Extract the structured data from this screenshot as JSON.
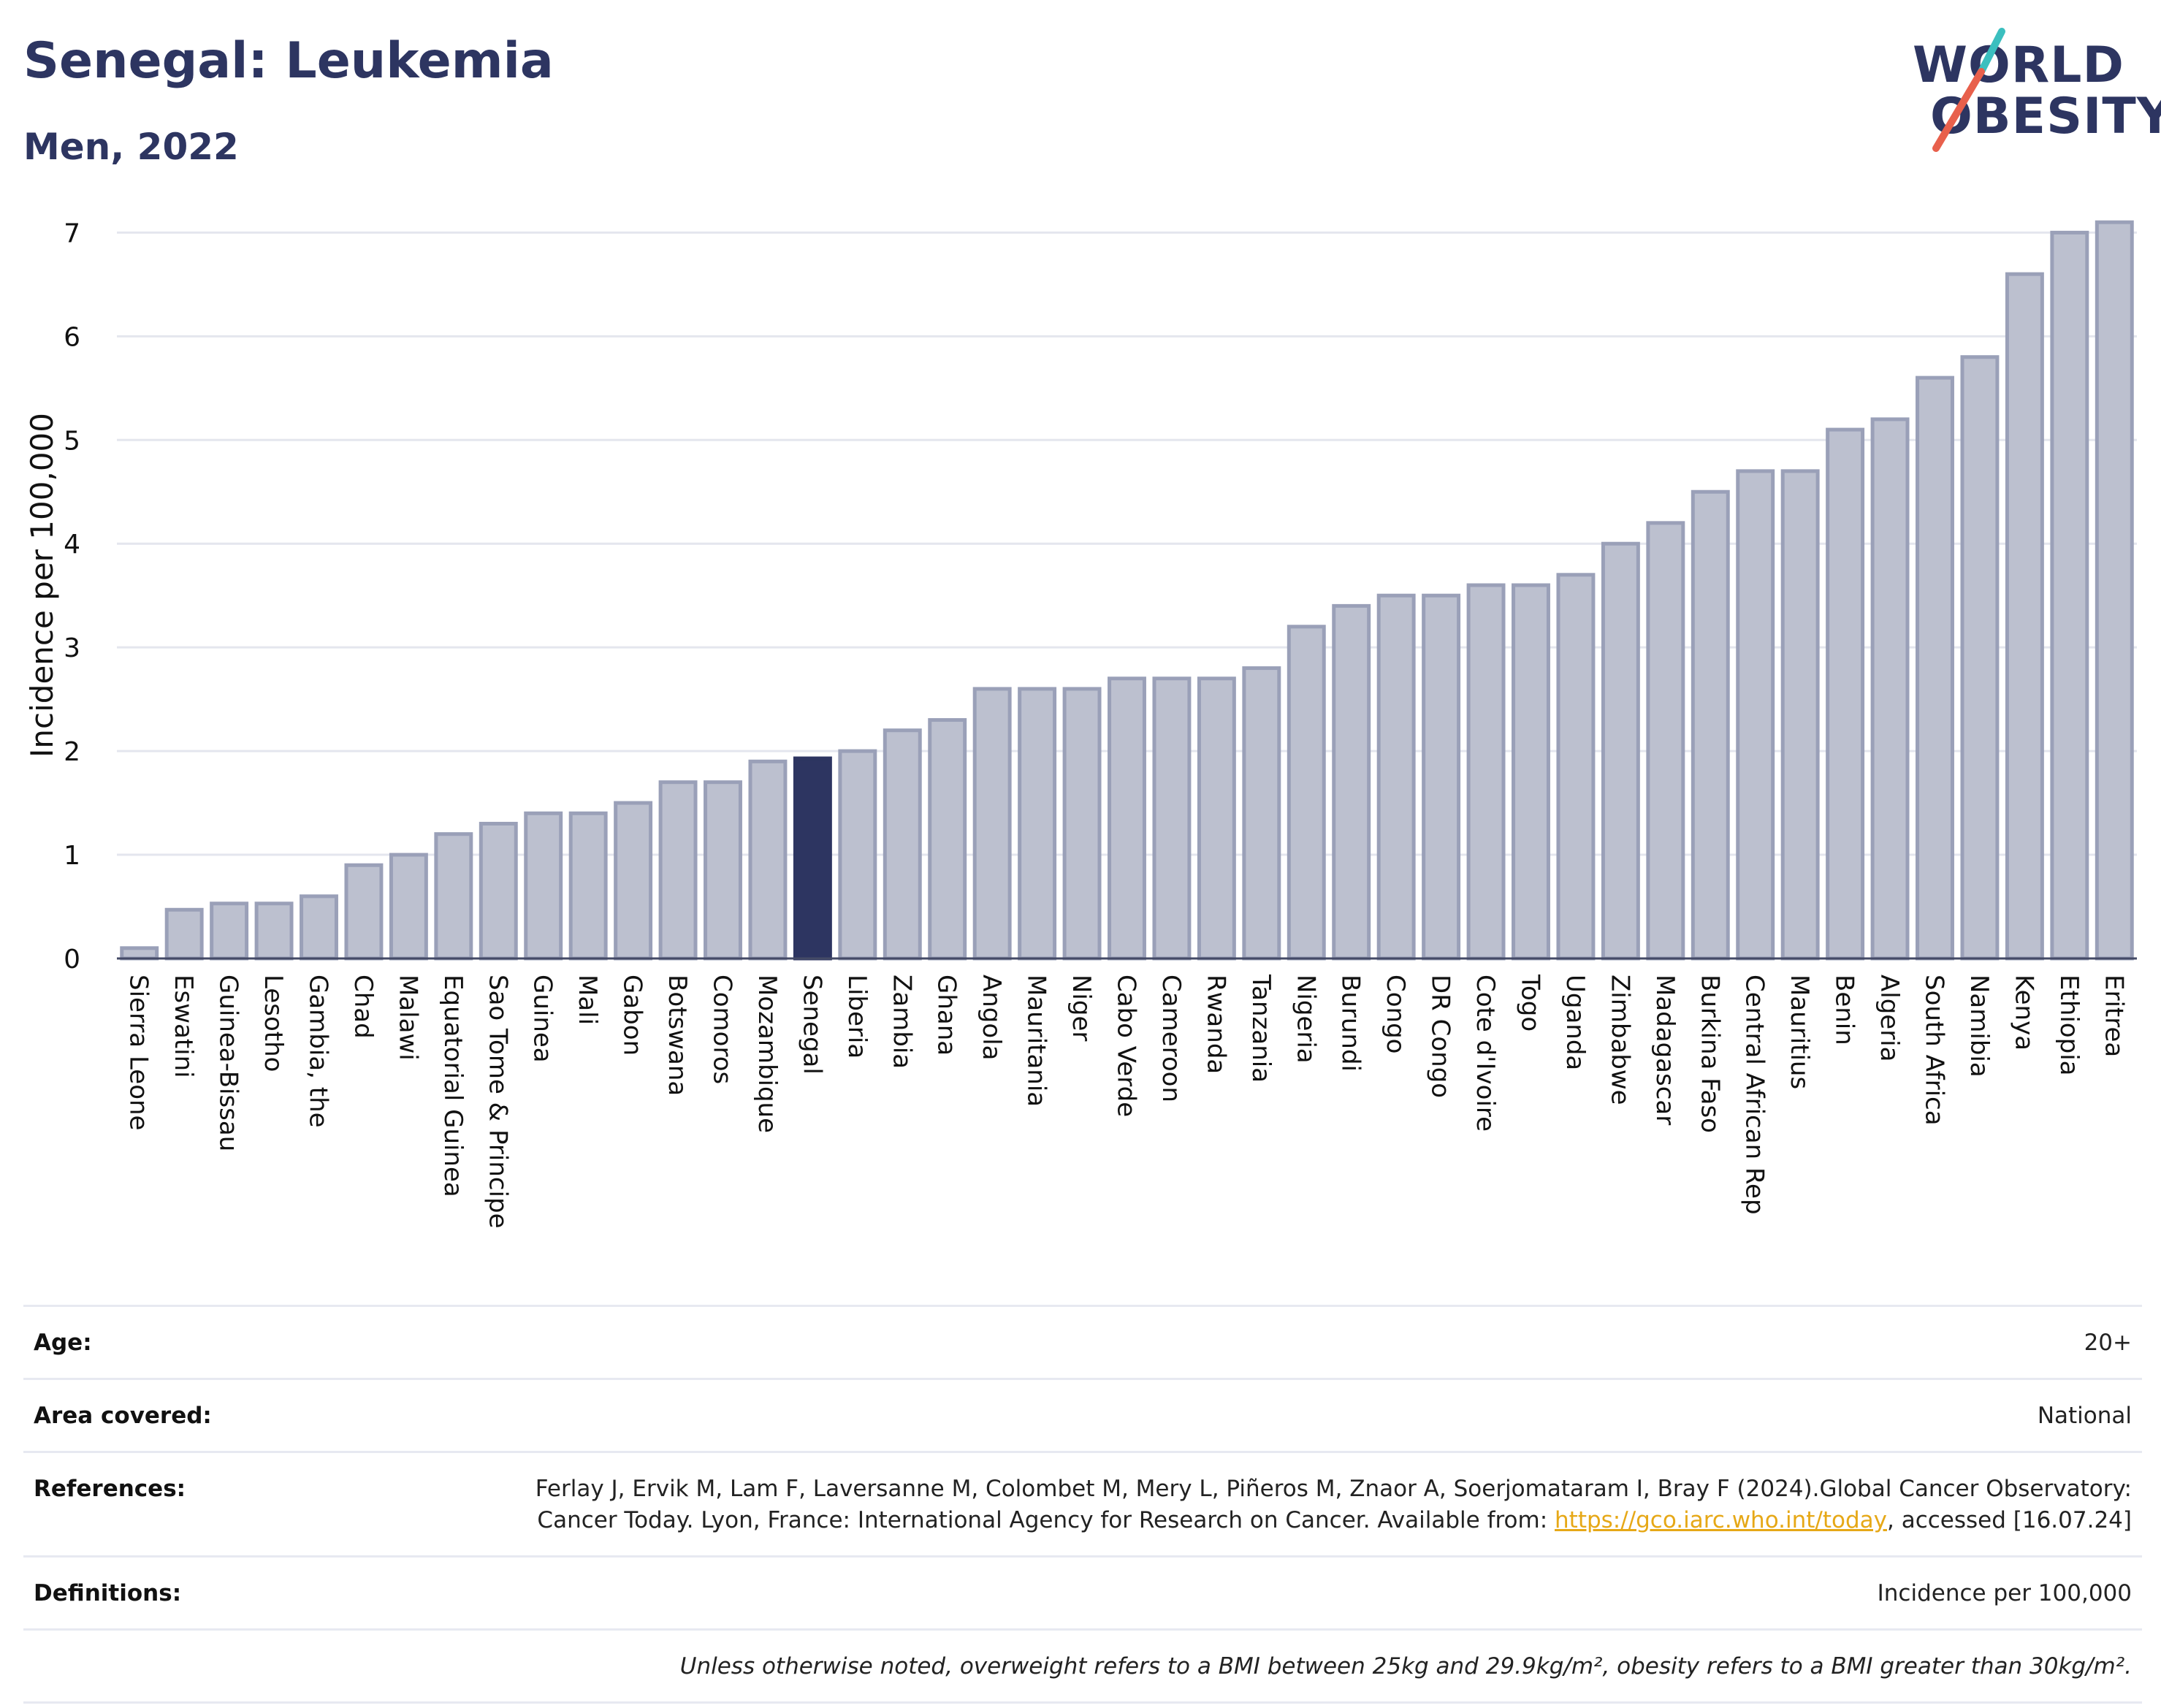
{
  "header": {
    "title": "Senegal: Leukemia",
    "subtitle": "Men, 2022"
  },
  "logo": {
    "line1": "WORLD",
    "line2": "OBESITY",
    "colors": {
      "navy": "#2d3561",
      "teal": "#3bbfbf",
      "coral": "#e8604c"
    }
  },
  "colors": {
    "bar_default": "#bcc0cf",
    "bar_default_border": "#9aa0b8",
    "bar_highlight": "#2d3561",
    "grid": "#e4e6ee",
    "axis_text": "#111111"
  },
  "chart_data": {
    "type": "bar",
    "title": "Senegal: Leukemia",
    "subtitle": "Men, 2022",
    "xlabel": "",
    "ylabel": "Incidence per 100,000",
    "ylim": [
      0,
      7.2
    ],
    "yticks": [
      0,
      1,
      2,
      3,
      4,
      5,
      6,
      7
    ],
    "grid": true,
    "highlight": "Senegal",
    "categories": [
      "Sierra Leone",
      "Eswatini",
      "Guinea-Bissau",
      "Lesotho",
      "Gambia, the",
      "Chad",
      "Malawi",
      "Equatorial Guinea",
      "Sao Tome & Principe",
      "Guinea",
      "Mali",
      "Gabon",
      "Botswana",
      "Comoros",
      "Mozambique",
      "Senegal",
      "Liberia",
      "Zambia",
      "Ghana",
      "Angola",
      "Mauritania",
      "Niger",
      "Cabo Verde",
      "Cameroon",
      "Rwanda",
      "Tanzania",
      "Nigeria",
      "Burundi",
      "Congo",
      "DR Congo",
      "Cote d'Ivoire",
      "Togo",
      "Uganda",
      "Zimbabwe",
      "Madagascar",
      "Burkina Faso",
      "Central African Rep",
      "Mauritius",
      "Benin",
      "Algeria",
      "South Africa",
      "Namibia",
      "Kenya",
      "Ethiopia",
      "Eritrea"
    ],
    "values": [
      0.1,
      0.47,
      0.53,
      0.53,
      0.6,
      0.9,
      1.0,
      1.2,
      1.3,
      1.4,
      1.4,
      1.5,
      1.7,
      1.7,
      1.9,
      1.93,
      2.0,
      2.2,
      2.3,
      2.6,
      2.6,
      2.6,
      2.7,
      2.7,
      2.7,
      2.8,
      3.2,
      3.4,
      3.5,
      3.5,
      3.6,
      3.6,
      3.7,
      4.0,
      4.2,
      4.5,
      4.7,
      4.7,
      5.1,
      5.2,
      5.6,
      5.8,
      6.6,
      7.0,
      7.1
    ]
  },
  "info": {
    "age_label": "Age:",
    "age_value": "20+",
    "area_label": "Area covered:",
    "area_value": "National",
    "references_label": "References:",
    "references_text": "Ferlay J, Ervik M, Lam F, Laversanne M, Colombet M, Mery L, Piñeros M, Znaor A, Soerjomataram I, Bray F (2024).Global Cancer Observatory: Cancer Today. Lyon, France: International Agency for Research on Cancer. Available from: ",
    "references_link": "https://gco.iarc.who.int/today",
    "references_tail": ", accessed [16.07.24]",
    "definitions_label": "Definitions:",
    "definitions_value": "Incidence per 100,000",
    "note": "Unless otherwise noted, overweight refers to a BMI between 25kg and 29.9kg/m², obesity refers to a BMI greater than 30kg/m²."
  }
}
